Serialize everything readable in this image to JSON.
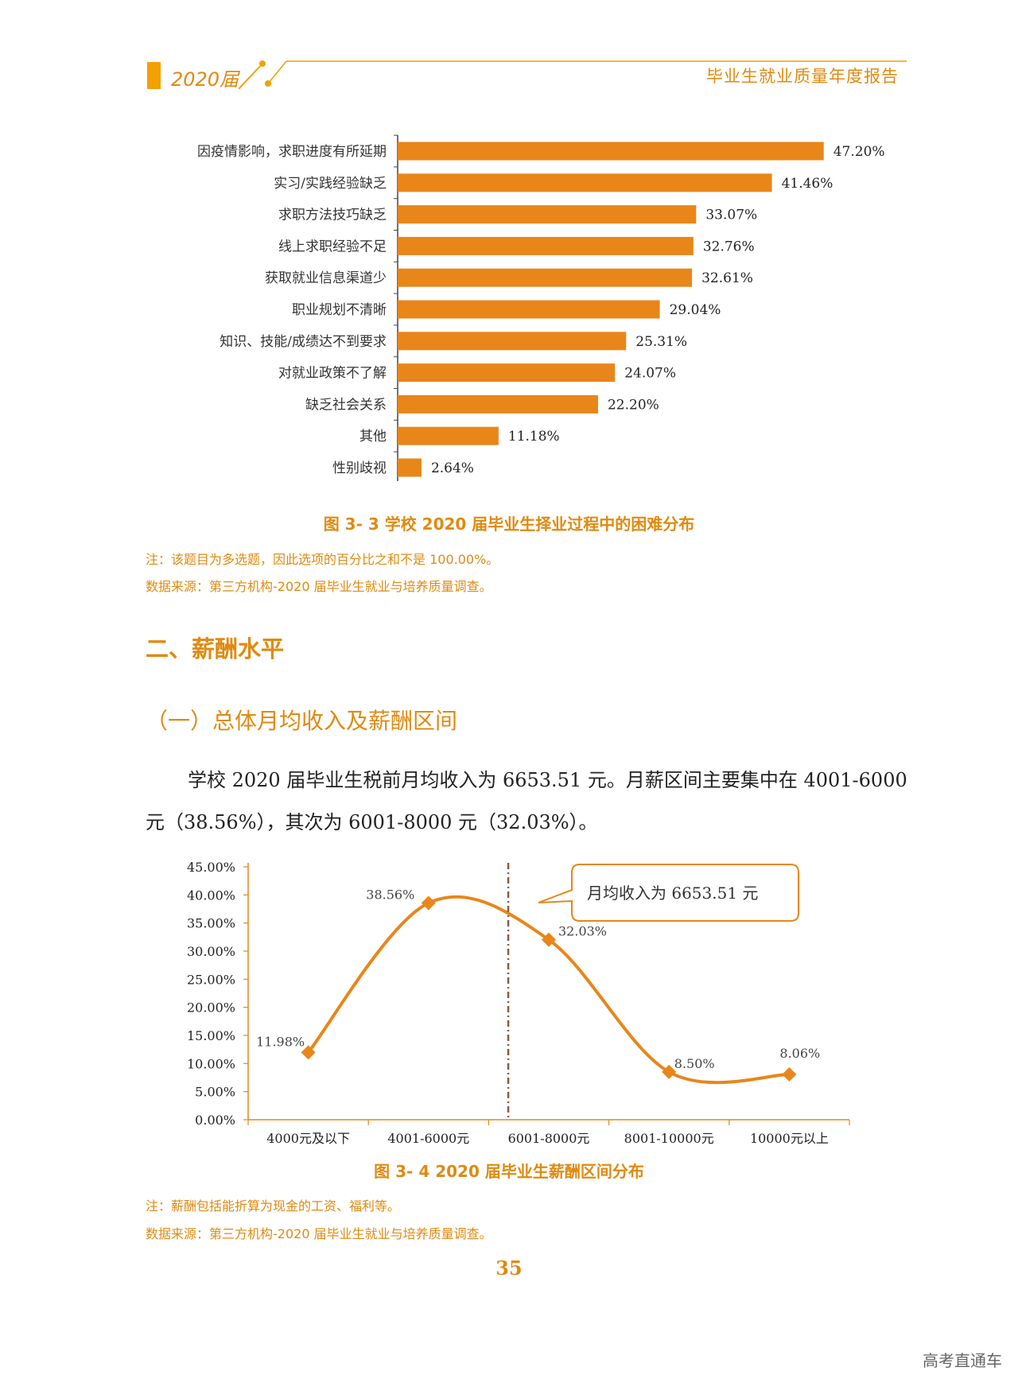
{
  "header": {
    "year": "2020届",
    "title": "毕业生就业质量年度报告"
  },
  "chart_data": [
    {
      "type": "bar",
      "orientation": "horizontal",
      "categories": [
        "因疫情影响，求职进度有所延期",
        "实习/实践经验缺乏",
        "求职方法技巧缺乏",
        "线上求职经验不足",
        "获取就业信息渠道少",
        "职业规划不清晰",
        "知识、技能/成绩达不到要求",
        "对就业政策不了解",
        "缺乏社会关系",
        "其他",
        "性别歧视"
      ],
      "values": [
        47.2,
        41.46,
        33.07,
        32.76,
        32.61,
        29.04,
        25.31,
        24.07,
        22.2,
        11.18,
        2.64
      ],
      "labels": [
        "47.20%",
        "41.46%",
        "33.07%",
        "32.76%",
        "32.61%",
        "29.04%",
        "25.31%",
        "24.07%",
        "22.20%",
        "11.18%",
        "2.64%"
      ],
      "xlim": [
        0,
        50
      ],
      "color": "#e8861a",
      "title": "图 3- 3  学校 2020 届毕业生择业过程中的困难分布"
    },
    {
      "type": "line",
      "categories": [
        "4000元及以下",
        "4001-6000元",
        "6001-8000元",
        "8001-10000元",
        "10000元以上"
      ],
      "values": [
        11.98,
        38.56,
        32.03,
        8.5,
        8.06
      ],
      "labels": [
        "11.98%",
        "38.56%",
        "32.03%",
        "8.50%",
        "8.06%"
      ],
      "yticks": [
        "0.00%",
        "5.00%",
        "10.00%",
        "15.00%",
        "20.00%",
        "25.00%",
        "30.00%",
        "35.00%",
        "40.00%",
        "45.00%"
      ],
      "ylim": [
        0,
        45
      ],
      "mean_marker_value": 6653.51,
      "callout": "月均收入为 6653.51 元",
      "color": "#e8861a",
      "title": "图 3- 4    2020 届毕业生薪酬区间分布"
    }
  ],
  "fig33": {
    "caption": "图 3- 3  学校 2020 届毕业生择业过程中的困难分布",
    "note": "注：该题目为多选题，因此选项的百分比之和不是 100.00%。",
    "source": "数据来源：第三方机构-2020 届毕业生就业与培养质量调查。"
  },
  "section2": {
    "title": "二、薪酬水平",
    "sub": "（一）总体月均收入及薪酬区间",
    "para_line1": "学校 2020 届毕业生税前月均收入为 6653.51 元。月薪区间主要集中在 4001-6000",
    "para_line2": "元（38.56%），其次为 6001-8000 元（32.03%）。"
  },
  "fig34": {
    "caption": "图 3- 4    2020 届毕业生薪酬区间分布",
    "note": "注：薪酬包括能折算为现金的工资、福利等。",
    "source": "数据来源：第三方机构-2020 届毕业生就业与培养质量调查。"
  },
  "page_number": "35",
  "watermark": "高考直通车"
}
